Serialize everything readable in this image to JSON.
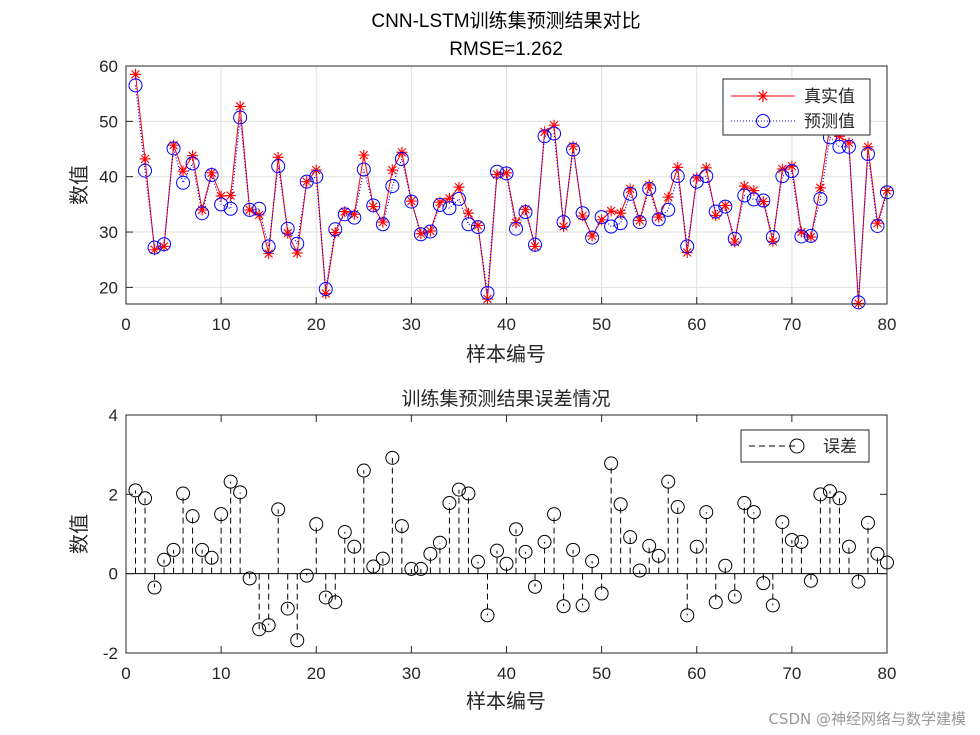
{
  "watermark": "CSDN @神经网络与数学建模",
  "chart_data": [
    {
      "type": "line",
      "title": "CNN-LSTM训练集预测结果对比",
      "subtitle": "RMSE=1.262",
      "xlabel": "样本编号",
      "ylabel": "数值",
      "xlim": [
        0,
        80
      ],
      "ylim": [
        17,
        60
      ],
      "xticks": [
        "0",
        "10",
        "20",
        "30",
        "40",
        "50",
        "60",
        "70",
        "80"
      ],
      "yticks": [
        "20",
        "30",
        "40",
        "50",
        "60"
      ],
      "grid": true,
      "legend_position": "top-right",
      "x": [
        1,
        2,
        3,
        4,
        5,
        6,
        7,
        8,
        9,
        10,
        11,
        12,
        13,
        14,
        15,
        16,
        17,
        18,
        19,
        20,
        21,
        22,
        23,
        24,
        25,
        26,
        27,
        28,
        29,
        30,
        31,
        32,
        33,
        34,
        35,
        36,
        37,
        38,
        39,
        40,
        41,
        42,
        43,
        44,
        45,
        46,
        47,
        48,
        49,
        50,
        51,
        52,
        53,
        54,
        55,
        56,
        57,
        58,
        59,
        60,
        61,
        62,
        63,
        64,
        65,
        66,
        67,
        68,
        69,
        70,
        71,
        72,
        73,
        74,
        75,
        76,
        77,
        78,
        79,
        80
      ],
      "series": [
        {
          "name": "真实值",
          "color": "#ff0000",
          "line": "solid",
          "marker": "asterisk",
          "values": [
            58.5,
            43.2,
            26.8,
            27.4,
            45.7,
            41.0,
            43.8,
            34.0,
            40.7,
            36.5,
            36.6,
            52.7,
            34.0,
            33.1,
            26.1,
            43.5,
            29.8,
            26.2,
            39.1,
            41.2,
            18.9,
            29.9,
            33.7,
            33.2,
            43.9,
            34.6,
            31.8,
            41.2,
            44.4,
            35.6,
            29.7,
            30.2,
            35.4,
            36.1,
            38.1,
            33.4,
            31.2,
            17.9,
            40.4,
            40.7,
            31.7,
            34.1,
            27.4,
            48.1,
            49.3,
            31.0,
            45.5,
            32.9,
            29.3,
            32.2,
            33.8,
            33.4,
            37.8,
            32.1,
            38.5,
            32.7,
            36.3,
            41.7,
            26.3,
            39.8,
            41.6,
            33.0,
            34.8,
            28.2,
            38.3,
            37.5,
            35.5,
            28.3,
            41.4,
            41.9,
            30.0,
            29.1,
            38.0,
            49.2,
            47.3,
            46.1,
            17.1,
            45.4,
            31.6,
            37.5
          ]
        },
        {
          "name": "预测值",
          "color": "#0000ff",
          "line": "dotted",
          "marker": "circle",
          "values": [
            56.5,
            41.1,
            27.2,
            27.8,
            45.1,
            38.9,
            42.4,
            33.4,
            40.3,
            35.0,
            34.2,
            50.7,
            34.0,
            34.2,
            27.4,
            41.9,
            30.6,
            27.9,
            39.1,
            40.0,
            19.7,
            30.5,
            33.2,
            32.6,
            41.3,
            34.8,
            31.4,
            38.3,
            43.2,
            35.5,
            29.6,
            30.1,
            34.9,
            34.3,
            36.0,
            31.4,
            30.9,
            19.0,
            40.9,
            40.6,
            30.6,
            33.6,
            27.7,
            47.3,
            47.8,
            31.8,
            44.9,
            33.4,
            29.0,
            32.7,
            31.0,
            31.6,
            36.9,
            31.8,
            37.8,
            32.3,
            34.0,
            40.1,
            27.4,
            39.1,
            40.1,
            33.7,
            34.6,
            28.8,
            36.6,
            35.9,
            35.7,
            29.1,
            40.1,
            41.0,
            29.2,
            29.3,
            36.0,
            47.1,
            45.4,
            45.4,
            17.3,
            44.1,
            31.1,
            37.2
          ]
        }
      ]
    },
    {
      "type": "stem",
      "title": "训练集预测结果误差情况",
      "xlabel": "样本编号",
      "ylabel": "数值",
      "xlim": [
        0,
        80
      ],
      "ylim": [
        -2,
        4
      ],
      "xticks": [
        "0",
        "10",
        "20",
        "30",
        "40",
        "50",
        "60",
        "70",
        "80"
      ],
      "yticks": [
        "-2",
        "0",
        "2",
        "4"
      ],
      "grid": false,
      "legend_position": "top-right",
      "series": [
        {
          "name": "误差",
          "color": "#000000",
          "line": "dashed",
          "marker": "circle",
          "values": [
            2.1,
            1.9,
            -0.35,
            0.35,
            0.6,
            2.02,
            1.45,
            0.6,
            0.4,
            1.5,
            2.32,
            2.05,
            -0.12,
            -1.4,
            -1.3,
            1.62,
            -0.88,
            -1.68,
            -0.05,
            1.25,
            -0.6,
            -0.72,
            1.05,
            0.68,
            2.6,
            0.18,
            0.38,
            2.92,
            1.2,
            0.12,
            0.12,
            0.5,
            0.78,
            1.78,
            2.12,
            2.02,
            0.3,
            -1.05,
            0.58,
            0.25,
            1.12,
            0.55,
            -0.33,
            0.8,
            1.5,
            -0.82,
            0.6,
            -0.8,
            0.32,
            -0.5,
            2.78,
            1.75,
            0.92,
            0.08,
            0.7,
            0.45,
            2.32,
            1.68,
            -1.05,
            0.68,
            1.55,
            -0.72,
            0.2,
            -0.58,
            1.78,
            1.55,
            -0.24,
            -0.8,
            1.3,
            0.85,
            0.8,
            -0.18,
            2.0,
            2.08,
            1.9,
            0.68,
            -0.2,
            1.28,
            0.5,
            0.28
          ]
        }
      ]
    }
  ]
}
